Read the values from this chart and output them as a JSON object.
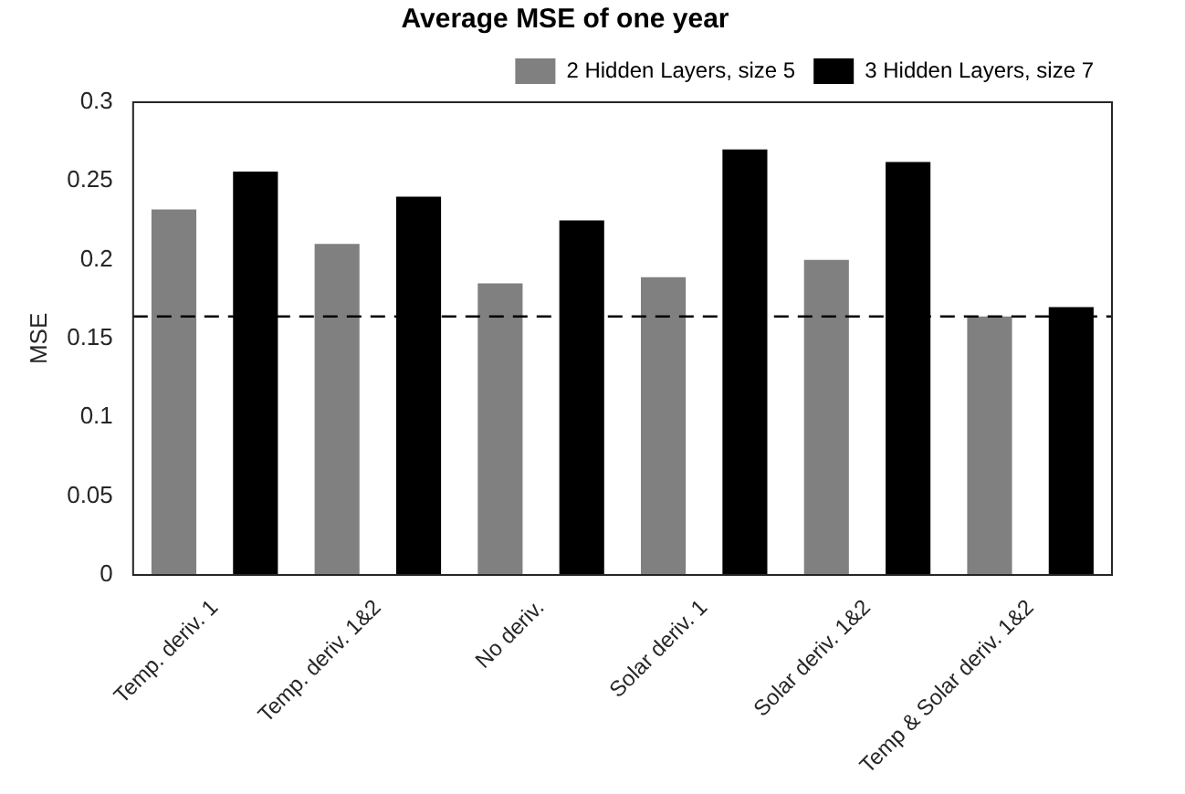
{
  "chart_data": {
    "type": "bar",
    "title": "Average MSE of one year",
    "ylabel": "MSE",
    "categories": [
      "Temp. deriv. 1",
      "Temp. deriv. 1&2",
      "No deriv.",
      "Solar deriv. 1",
      "Solar deriv. 1&2",
      "Temp & Solar deriv. 1&2"
    ],
    "series": [
      {
        "name": "2 Hidden Layers, size 5",
        "color": "#808080",
        "values": [
          0.232,
          0.21,
          0.185,
          0.189,
          0.2,
          0.164
        ]
      },
      {
        "name": "3 Hidden Layers, size 7",
        "color": "#000000",
        "values": [
          0.256,
          0.24,
          0.225,
          0.27,
          0.262,
          0.17
        ]
      }
    ],
    "ylim": [
      0,
      0.3
    ],
    "yticks": [
      0,
      0.05,
      0.1,
      0.15,
      0.2,
      0.25,
      0.3
    ],
    "ref_lines": [
      {
        "axis": "y",
        "value": 0.164,
        "color": "#000000",
        "line_style": "dashed"
      }
    ],
    "grid": false,
    "legend": "top right"
  }
}
